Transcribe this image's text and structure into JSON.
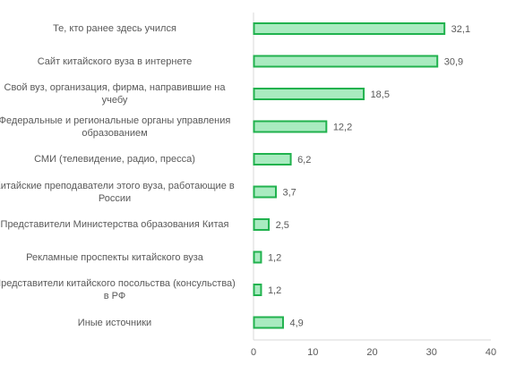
{
  "chart_data": {
    "type": "bar",
    "orientation": "horizontal",
    "title": "",
    "xlabel": "",
    "ylabel": "",
    "categories": [
      "Те, кто ранее здесь учился",
      "Сайт китайского вуза в интернете",
      "Свой вуз, организация, фирма, направившие на учебу",
      "Федеральные и региональные органы управления образованием",
      "СМИ (телевидение, радио, пресса)",
      "Китайские преподаватели этого вуза, работающие в России",
      "Представители Министерства образования Китая",
      "Рекламные проспекты китайского вуза",
      "Представители китайского посольства (консульства) в РФ",
      "Иные источники"
    ],
    "category_lines": [
      [
        "Те, кто ранее здесь учился"
      ],
      [
        "Сайт китайского вуза в интернете"
      ],
      [
        "Свой вуз, организация, фирма, направившие на",
        "учебу"
      ],
      [
        "Федеральные и региональные органы управления",
        "образованием"
      ],
      [
        "СМИ (телевидение, радио, пресса)"
      ],
      [
        "Китайские преподаватели этого вуза, работающие в",
        "России"
      ],
      [
        "Представители Министерства образования Китая"
      ],
      [
        "Рекламные проспекты китайского вуза"
      ],
      [
        "Представители китайского посольства (консульства)",
        "в РФ"
      ],
      [
        "Иные источники"
      ]
    ],
    "values": [
      32.1,
      30.9,
      18.5,
      12.2,
      6.2,
      3.7,
      2.5,
      1.2,
      1.2,
      4.9
    ],
    "value_labels": [
      "32,1",
      "30,9",
      "18,5",
      "12,2",
      "6,2",
      "3,7",
      "2,5",
      "1,2",
      "1,2",
      "4,9"
    ],
    "xlim": [
      0,
      40
    ],
    "xticks": [
      0,
      10,
      20,
      30,
      40
    ],
    "grid": false,
    "legend": "none",
    "colors": {
      "bar_fill": "#a9ebc0",
      "bar_stroke": "#21b24e",
      "text": "#595959",
      "axis": "#d9d9d9"
    }
  }
}
